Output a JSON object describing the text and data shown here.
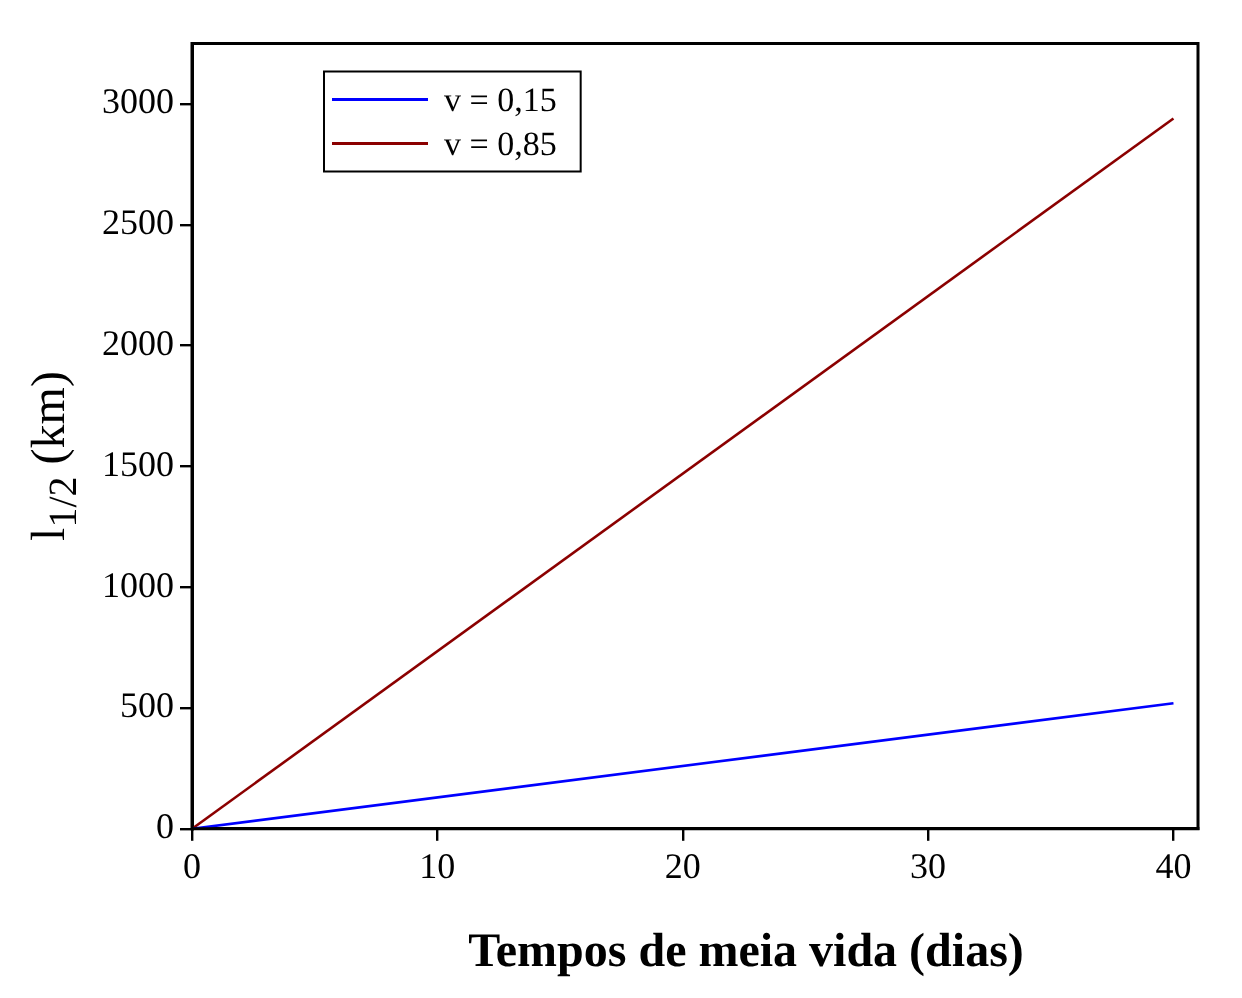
{
  "chart_data": {
    "type": "line",
    "xlabel": "Tempos de meia vida (dias)",
    "ylabel": "l$_{1/2}$ (km)",
    "x": [
      0,
      40
    ],
    "series": [
      {
        "name": "v = 0,15",
        "color": "#0000ff",
        "values": [
          0,
          520
        ]
      },
      {
        "name": "v = 0,85",
        "color": "#8b0000",
        "values": [
          0,
          2940
        ]
      }
    ],
    "xlim": [
      0,
      41
    ],
    "xticks": [
      0,
      10,
      20,
      30,
      40
    ],
    "ylim": [
      0,
      3250
    ],
    "yticks": [
      0,
      500,
      1000,
      1500,
      2000,
      2500,
      3000
    ],
    "grid": false,
    "legend": "top left",
    "marker": "none",
    "line_style": "solid"
  }
}
